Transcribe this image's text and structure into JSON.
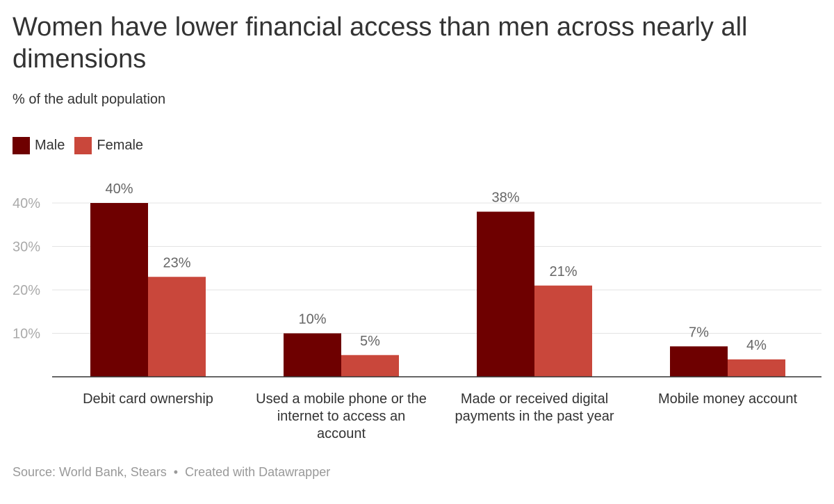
{
  "chart_data": {
    "type": "bar",
    "title": "Women have lower financial access than men across nearly all dimensions",
    "subtitle": "% of the adult population",
    "categories": [
      "Debit card ownership",
      "Used a mobile phone or the internet to access an account",
      "Made or received digital payments in the past year",
      "Mobile money account"
    ],
    "series": [
      {
        "name": "Male",
        "color": "#6e0000",
        "values": [
          40,
          10,
          38,
          7
        ]
      },
      {
        "name": "Female",
        "color": "#c9473b",
        "values": [
          23,
          5,
          21,
          4
        ]
      }
    ],
    "data_labels": [
      [
        "40%",
        "10%",
        "38%",
        "7%"
      ],
      [
        "23%",
        "5%",
        "21%",
        "4%"
      ]
    ],
    "yticks": [
      10,
      20,
      30,
      40
    ],
    "ytick_labels": [
      "10%",
      "20%",
      "30%",
      "40%"
    ],
    "ylim": [
      0,
      40
    ],
    "grid": true,
    "legend_position": "top-left"
  },
  "source": {
    "text": "Source: World Bank, Stears",
    "separator": "•",
    "credit": "Created with Datawrapper"
  }
}
